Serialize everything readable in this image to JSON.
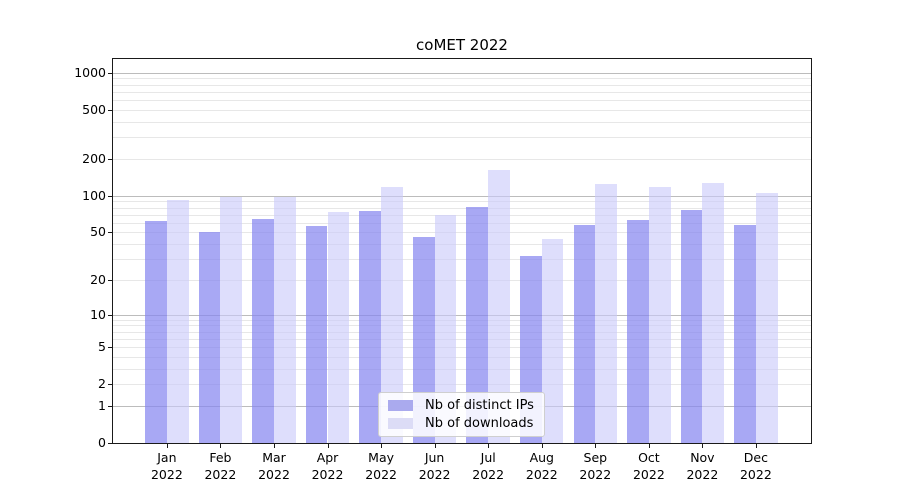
{
  "chart_data": {
    "type": "bar",
    "title": "coMET 2022",
    "scale": "log1p",
    "grid": true,
    "legend_position": "lower center",
    "categories": [
      "Jan",
      "Feb",
      "Mar",
      "Apr",
      "May",
      "Jun",
      "Jul",
      "Aug",
      "Sep",
      "Oct",
      "Nov",
      "Dec"
    ],
    "category_sublabel": "2022",
    "series": [
      {
        "name": "Nb of distinct IPs",
        "color": "rgba(134,134,240,0.72)",
        "legend_color": "#aaaaee",
        "values": [
          62,
          50,
          65,
          56,
          75,
          46,
          81,
          32,
          57,
          63,
          76,
          57
        ]
      },
      {
        "name": "Nb of downloads",
        "color": "rgba(201,201,250,0.62)",
        "legend_color": "#dcdcf6",
        "values": [
          92,
          97,
          97,
          73,
          119,
          70,
          162,
          44,
          125,
          119,
          126,
          105
        ]
      }
    ],
    "yticks": [
      0,
      1,
      2,
      5,
      10,
      20,
      50,
      100,
      200,
      500,
      1000
    ],
    "ylim": [
      0,
      1294
    ],
    "colors": {
      "grid_major": "#bcbcbc",
      "grid_minor": "#e7e7e7",
      "axis": "#1a1a1a"
    }
  }
}
